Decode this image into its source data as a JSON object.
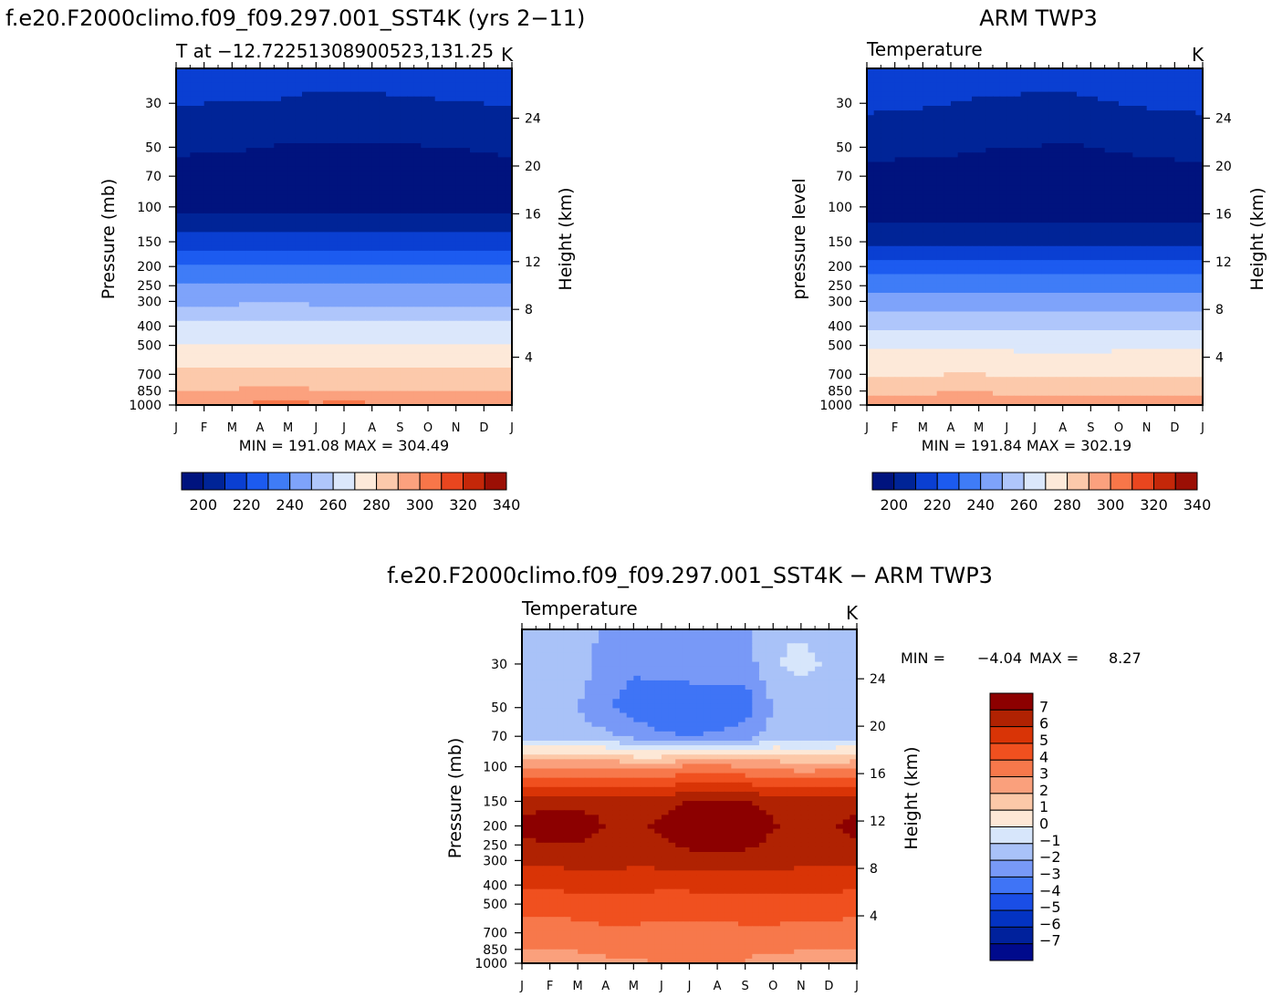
{
  "colors": {
    "abs_palette": [
      "#00137e",
      "#002497",
      "#0a3fd2",
      "#1c5bf0",
      "#3f7cf7",
      "#7ea3fa",
      "#afc6fb",
      "#dbe7fb",
      "#fde9d9",
      "#fcc9ab",
      "#fba17e",
      "#f87649",
      "#e9461f",
      "#c42709",
      "#9b0f05"
    ],
    "diff_palette": [
      "#000a8c",
      "#00219c",
      "#0333c2",
      "#1a4ee6",
      "#3f74f6",
      "#7899f7",
      "#a9c2f8",
      "#d7e6fb",
      "#fde8d6",
      "#fcc8a8",
      "#faa07c",
      "#f7784b",
      "#f0501f",
      "#d93406",
      "#b02202",
      "#8c0000"
    ]
  },
  "panels": {
    "model": {
      "title": "f.e20.F2000climo.f09_f09.297.001_SST4K (yrs 2−11)",
      "subtitle_left": "T at −12.72251308900523,131.25",
      "subtitle_right": "K",
      "ylabel": "Pressure (mb)",
      "ylabel_right": "Height (km)",
      "minmax": "MIN = 191.08 MAX = 304.49"
    },
    "obs": {
      "title": "ARM TWP3",
      "subtitle_left": "Temperature",
      "subtitle_right": "K",
      "ylabel": "pressure level",
      "ylabel_right": "Height (km)",
      "minmax": "MIN = 191.84 MAX = 302.19"
    },
    "diff": {
      "title": "f.e20.F2000climo.f09_f09.297.001_SST4K − ARM TWP3",
      "subtitle_left": "Temperature",
      "subtitle_right": "K",
      "ylabel": "Pressure (mb)",
      "ylabel_right": "Height (km)",
      "min_label": "MIN =",
      "min_value": "−4.04",
      "max_label": "MAX =",
      "max_value": "8.27"
    }
  },
  "chart_data": [
    {
      "type": "heatmap",
      "title": "f.e20.F2000climo.f09_f09.297.001_SST4K (yrs 2−11)",
      "subtitle": "T at −12.72251308900523,131.25",
      "units": "K",
      "xlabel": "",
      "ylabel": "Pressure (mb)",
      "ylabel_right": "Height (km)",
      "x": [
        "J",
        "F",
        "M",
        "A",
        "M",
        "J",
        "J",
        "A",
        "S",
        "O",
        "N",
        "D",
        "J"
      ],
      "pressure_ticks": [
        "30",
        "50",
        "70",
        "100",
        "150",
        "200",
        "250",
        "300",
        "400",
        "500",
        "700",
        "850",
        "1000"
      ],
      "height_ticks": [
        "24",
        "20",
        "16",
        "12",
        "8",
        "4"
      ],
      "levels": [
        1000,
        925,
        850,
        700,
        500,
        400,
        300,
        250,
        200,
        150,
        100,
        70,
        50,
        30,
        20
      ],
      "values": [
        [
          300,
          300,
          301,
          302,
          302,
          302,
          303,
          302,
          301,
          300,
          299,
          299,
          300
        ],
        [
          295,
          295,
          296,
          297,
          297,
          296,
          296,
          296,
          296,
          295,
          294,
          294,
          295
        ],
        [
          290,
          290,
          291,
          292,
          292,
          291,
          291,
          291,
          291,
          290,
          290,
          290,
          290
        ],
        [
          282,
          282,
          283,
          283,
          283,
          282,
          282,
          282,
          282,
          282,
          282,
          282,
          282
        ],
        [
          270,
          270,
          271,
          271,
          271,
          270,
          270,
          270,
          270,
          270,
          270,
          270,
          270
        ],
        [
          262,
          262,
          262,
          263,
          263,
          262,
          262,
          262,
          262,
          262,
          262,
          262,
          262
        ],
        [
          248,
          248,
          248,
          249,
          249,
          248,
          248,
          248,
          248,
          248,
          248,
          248,
          248
        ],
        [
          240,
          240,
          240,
          240,
          240,
          240,
          240,
          240,
          240,
          240,
          240,
          240,
          240
        ],
        [
          230,
          230,
          231,
          231,
          231,
          230,
          230,
          230,
          230,
          230,
          230,
          230,
          230
        ],
        [
          214,
          214,
          214,
          215,
          215,
          214,
          214,
          214,
          214,
          214,
          214,
          214,
          214
        ],
        [
          196,
          196,
          197,
          197,
          198,
          198,
          198,
          198,
          197,
          197,
          196,
          196,
          196
        ],
        [
          196,
          196,
          196,
          195,
          195,
          195,
          194,
          194,
          195,
          195,
          196,
          196,
          196
        ],
        [
          202,
          201,
          201,
          200,
          199,
          199,
          199,
          199,
          199,
          200,
          200,
          201,
          202
        ],
        [
          211,
          210,
          210,
          210,
          209,
          208,
          208,
          208,
          209,
          209,
          210,
          210,
          211
        ],
        [
          216,
          216,
          216,
          216,
          215,
          214,
          214,
          214,
          215,
          215,
          216,
          216,
          216
        ]
      ],
      "colorbar_levels": [
        200,
        210,
        220,
        230,
        240,
        250,
        260,
        270,
        280,
        290,
        300,
        310,
        320,
        330,
        340
      ],
      "colorbar_labels": [
        "200",
        "220",
        "240",
        "260",
        "280",
        "300",
        "320",
        "340"
      ],
      "min": 191.08,
      "max": 304.49
    },
    {
      "type": "heatmap",
      "title": "ARM TWP3",
      "subtitle": "Temperature",
      "units": "K",
      "ylabel": "pressure level",
      "ylabel_right": "Height (km)",
      "x": [
        "J",
        "F",
        "M",
        "A",
        "M",
        "J",
        "J",
        "A",
        "S",
        "O",
        "N",
        "D",
        "J"
      ],
      "pressure_ticks": [
        "30",
        "50",
        "70",
        "100",
        "150",
        "200",
        "250",
        "300",
        "400",
        "500",
        "700",
        "850",
        "1000"
      ],
      "height_ticks": [
        "24",
        "20",
        "16",
        "12",
        "8",
        "4"
      ],
      "levels": [
        1000,
        925,
        850,
        700,
        500,
        400,
        300,
        250,
        200,
        150,
        100,
        70,
        50,
        30,
        20
      ],
      "values": [
        [
          298,
          298,
          298,
          299,
          299,
          298,
          298,
          298,
          298,
          298,
          298,
          298,
          298
        ],
        [
          293,
          293,
          293,
          294,
          294,
          293,
          292,
          292,
          292,
          293,
          293,
          293,
          293
        ],
        [
          288,
          288,
          288,
          289,
          289,
          288,
          288,
          287,
          287,
          288,
          288,
          288,
          288
        ],
        [
          279,
          279,
          279,
          280,
          280,
          279,
          279,
          279,
          279,
          279,
          279,
          279,
          279
        ],
        [
          268,
          268,
          268,
          268,
          268,
          268,
          267,
          267,
          267,
          268,
          268,
          268,
          268
        ],
        [
          258,
          258,
          258,
          259,
          259,
          258,
          258,
          258,
          258,
          258,
          258,
          258,
          258
        ],
        [
          244,
          244,
          244,
          245,
          245,
          244,
          244,
          244,
          244,
          244,
          244,
          244,
          244
        ],
        [
          236,
          236,
          236,
          236,
          236,
          236,
          236,
          236,
          236,
          236,
          236,
          236,
          236
        ],
        [
          224,
          224,
          224,
          225,
          225,
          224,
          224,
          224,
          224,
          224,
          224,
          224,
          224
        ],
        [
          206,
          206,
          206,
          207,
          207,
          206,
          206,
          206,
          206,
          206,
          206,
          206,
          206
        ],
        [
          194,
          194,
          194,
          194,
          194,
          194,
          194,
          194,
          194,
          194,
          194,
          194,
          194
        ],
        [
          196,
          196,
          195,
          195,
          194,
          194,
          193,
          193,
          194,
          195,
          196,
          196,
          196
        ],
        [
          204,
          203,
          203,
          202,
          201,
          200,
          200,
          199,
          200,
          201,
          202,
          203,
          204
        ],
        [
          212,
          211,
          211,
          210,
          209,
          209,
          208,
          208,
          209,
          210,
          211,
          211,
          212
        ],
        [
          216,
          216,
          216,
          215,
          215,
          214,
          214,
          214,
          215,
          215,
          216,
          216,
          216
        ]
      ],
      "colorbar_levels": [
        200,
        210,
        220,
        230,
        240,
        250,
        260,
        270,
        280,
        290,
        300,
        310,
        320,
        330,
        340
      ],
      "colorbar_labels": [
        "200",
        "220",
        "240",
        "260",
        "280",
        "300",
        "320",
        "340"
      ],
      "min": 191.84,
      "max": 302.19
    },
    {
      "type": "heatmap",
      "title": "f.e20.F2000climo.f09_f09.297.001_SST4K − ARM TWP3",
      "subtitle": "Temperature",
      "units": "K",
      "ylabel": "Pressure (mb)",
      "ylabel_right": "Height (km)",
      "x": [
        "J",
        "F",
        "M",
        "A",
        "M",
        "J",
        "J",
        "A",
        "S",
        "O",
        "N",
        "D",
        "J"
      ],
      "pressure_ticks": [
        "30",
        "50",
        "70",
        "100",
        "150",
        "200",
        "250",
        "300",
        "400",
        "500",
        "700",
        "850",
        "1000"
      ],
      "height_ticks": [
        "24",
        "20",
        "16",
        "12",
        "8",
        "4"
      ],
      "levels": [
        1000,
        925,
        850,
        700,
        500,
        400,
        300,
        250,
        200,
        150,
        100,
        70,
        50,
        30,
        20
      ],
      "values": [
        [
          2.0,
          2.0,
          2.5,
          2.8,
          2.8,
          3.2,
          3.6,
          3.5,
          3.0,
          2.5,
          2.0,
          2.0,
          2.0
        ],
        [
          2.2,
          2.2,
          2.6,
          3.0,
          3.0,
          3.2,
          3.4,
          3.4,
          3.2,
          2.4,
          2.2,
          2.2,
          2.2
        ],
        [
          3.0,
          3.0,
          3.2,
          3.4,
          3.5,
          3.5,
          3.2,
          3.2,
          3.5,
          3.6,
          3.2,
          3.0,
          3.0
        ],
        [
          3.5,
          3.4,
          3.6,
          3.8,
          3.8,
          3.7,
          3.6,
          3.6,
          3.8,
          3.8,
          3.7,
          3.6,
          3.5
        ],
        [
          4.5,
          4.4,
          4.6,
          4.6,
          4.5,
          4.5,
          4.6,
          4.6,
          4.6,
          4.5,
          4.4,
          4.5,
          4.5
        ],
        [
          5.2,
          5.2,
          5.3,
          5.5,
          5.4,
          5.2,
          5.2,
          5.2,
          5.3,
          5.4,
          5.5,
          5.3,
          5.2
        ],
        [
          6.2,
          6.3,
          6.4,
          6.4,
          6.2,
          6.4,
          6.6,
          6.7,
          6.6,
          6.4,
          6.2,
          6.2,
          6.2
        ],
        [
          6.8,
          7.0,
          7.0,
          6.7,
          6.5,
          6.8,
          7.2,
          7.3,
          7.2,
          6.8,
          6.6,
          6.7,
          6.8
        ],
        [
          7.3,
          7.5,
          7.4,
          7.0,
          6.7,
          7.2,
          7.6,
          7.6,
          7.5,
          7.1,
          6.8,
          6.9,
          7.3
        ],
        [
          6.6,
          6.8,
          6.8,
          6.7,
          6.4,
          6.7,
          7.0,
          7.1,
          7.0,
          6.7,
          6.4,
          6.5,
          6.6
        ],
        [
          2.8,
          2.8,
          3.0,
          3.0,
          2.6,
          2.8,
          3.2,
          3.2,
          3.0,
          2.8,
          2.5,
          2.6,
          2.8
        ],
        [
          -1.5,
          -1.4,
          -1.5,
          -1.8,
          -2.4,
          -2.8,
          -3.0,
          -2.8,
          -2.5,
          -1.6,
          -1.8,
          -1.6,
          -1.5
        ],
        [
          -2.0,
          -2.0,
          -2.0,
          -2.8,
          -3.5,
          -3.8,
          -3.8,
          -3.9,
          -3.6,
          -2.0,
          -2.0,
          -2.0,
          -2.0
        ],
        [
          -1.2,
          -1.2,
          -1.3,
          -2.6,
          -2.8,
          -2.5,
          -2.4,
          -2.3,
          -2.5,
          -1.2,
          -0.6,
          -1.2,
          -1.2
        ],
        [
          -1.5,
          -1.5,
          -1.5,
          -2.2,
          -2.4,
          -2.4,
          -2.2,
          -2.0,
          -2.2,
          -1.0,
          -1.2,
          -1.5,
          -1.5
        ]
      ],
      "colorbar_levels": [
        -7,
        -6,
        -5,
        -4,
        -3,
        -2,
        -1,
        0,
        1,
        2,
        3,
        4,
        5,
        6,
        7
      ],
      "colorbar_labels": [
        "7",
        "6",
        "5",
        "4",
        "3",
        "2",
        "1",
        "0",
        "−1",
        "−2",
        "−3",
        "−4",
        "−5",
        "−6",
        "−7"
      ],
      "min": -4.04,
      "max": 8.27
    }
  ]
}
